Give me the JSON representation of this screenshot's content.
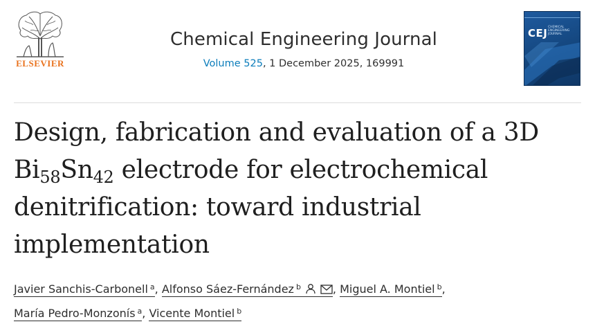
{
  "publisher": {
    "name": "ELSEVIER"
  },
  "journal": {
    "title": "Chemical Engineering Journal",
    "volume_link": "Volume 525",
    "issue_info": ", 1 December 2025, 169991",
    "cover_text": "CEJ",
    "cover_subtitle": "CHEMICAL ENGINEERING JOURNAL"
  },
  "article": {
    "title_part1": "Design, fabrication and evaluation of a 3D Bi",
    "title_sub1": "58",
    "title_part2": "Sn",
    "title_sub2": "42",
    "title_part3": " electrode for electrochemical denitrification: toward industrial implementation"
  },
  "authors": [
    {
      "name": "Javier Sanchis-Carbonell",
      "aff": "a"
    },
    {
      "name": "Alfonso Sáez-Fernández",
      "aff": "b"
    },
    {
      "name": "Miguel A. Montiel",
      "aff": "b"
    },
    {
      "name": "María Pedro-Monzonís",
      "aff": "a"
    },
    {
      "name": "Vicente Montiel",
      "aff": "b"
    }
  ],
  "icons": {
    "author_profile": "person-icon",
    "author_email": "envelope-icon"
  },
  "colors": {
    "publisher_orange": "#e9711c",
    "link_blue": "#0c7dbb",
    "cover_blue": "#1e5a9e"
  }
}
